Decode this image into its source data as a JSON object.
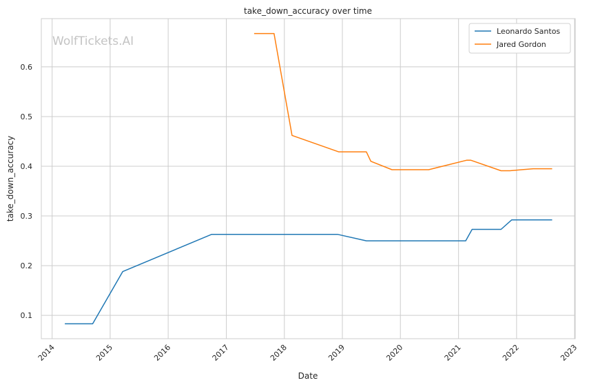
{
  "chart_data": {
    "type": "line",
    "title": "take_down_accuracy over time",
    "xlabel": "Date",
    "ylabel": "take_down_accuracy",
    "watermark": "WolfTickets.AI",
    "x_ticks": [
      "2014",
      "2015",
      "2016",
      "2017",
      "2018",
      "2019",
      "2020",
      "2021",
      "2022",
      "2023"
    ],
    "y_ticks": [
      "0.1",
      "0.2",
      "0.3",
      "0.4",
      "0.5",
      "0.6"
    ],
    "xlim": [
      "2013-10-25",
      "2023-01-05"
    ],
    "ylim": [
      0.053,
      0.697
    ],
    "grid": true,
    "legend_position": "top-right",
    "series": [
      {
        "name": "Leonardo Santos",
        "color": "#1f77b4",
        "points": [
          [
            "2014-03-22",
            0.083
          ],
          [
            "2014-09-13",
            0.083
          ],
          [
            "2015-03-21",
            0.188
          ],
          [
            "2016-10-01",
            0.263
          ],
          [
            "2018-12-01",
            0.263
          ],
          [
            "2019-06-01",
            0.25
          ],
          [
            "2021-02-15",
            0.25
          ],
          [
            "2021-03-27",
            0.273
          ],
          [
            "2021-09-25",
            0.273
          ],
          [
            "2021-12-01",
            0.292
          ],
          [
            "2022-08-13",
            0.292
          ]
        ]
      },
      {
        "name": "Jared Gordon",
        "color": "#ff7f0e",
        "points": [
          [
            "2017-06-25",
            0.667
          ],
          [
            "2017-10-28",
            0.667
          ],
          [
            "2018-02-18",
            0.462
          ],
          [
            "2018-12-08",
            0.429
          ],
          [
            "2019-06-01",
            0.429
          ],
          [
            "2019-06-29",
            0.41
          ],
          [
            "2019-11-09",
            0.393
          ],
          [
            "2020-06-27",
            0.393
          ],
          [
            "2021-02-20",
            0.412
          ],
          [
            "2021-03-20",
            0.412
          ],
          [
            "2021-09-25",
            0.391
          ],
          [
            "2021-11-20",
            0.391
          ],
          [
            "2022-04-16",
            0.395
          ],
          [
            "2022-08-13",
            0.395
          ]
        ]
      }
    ]
  }
}
